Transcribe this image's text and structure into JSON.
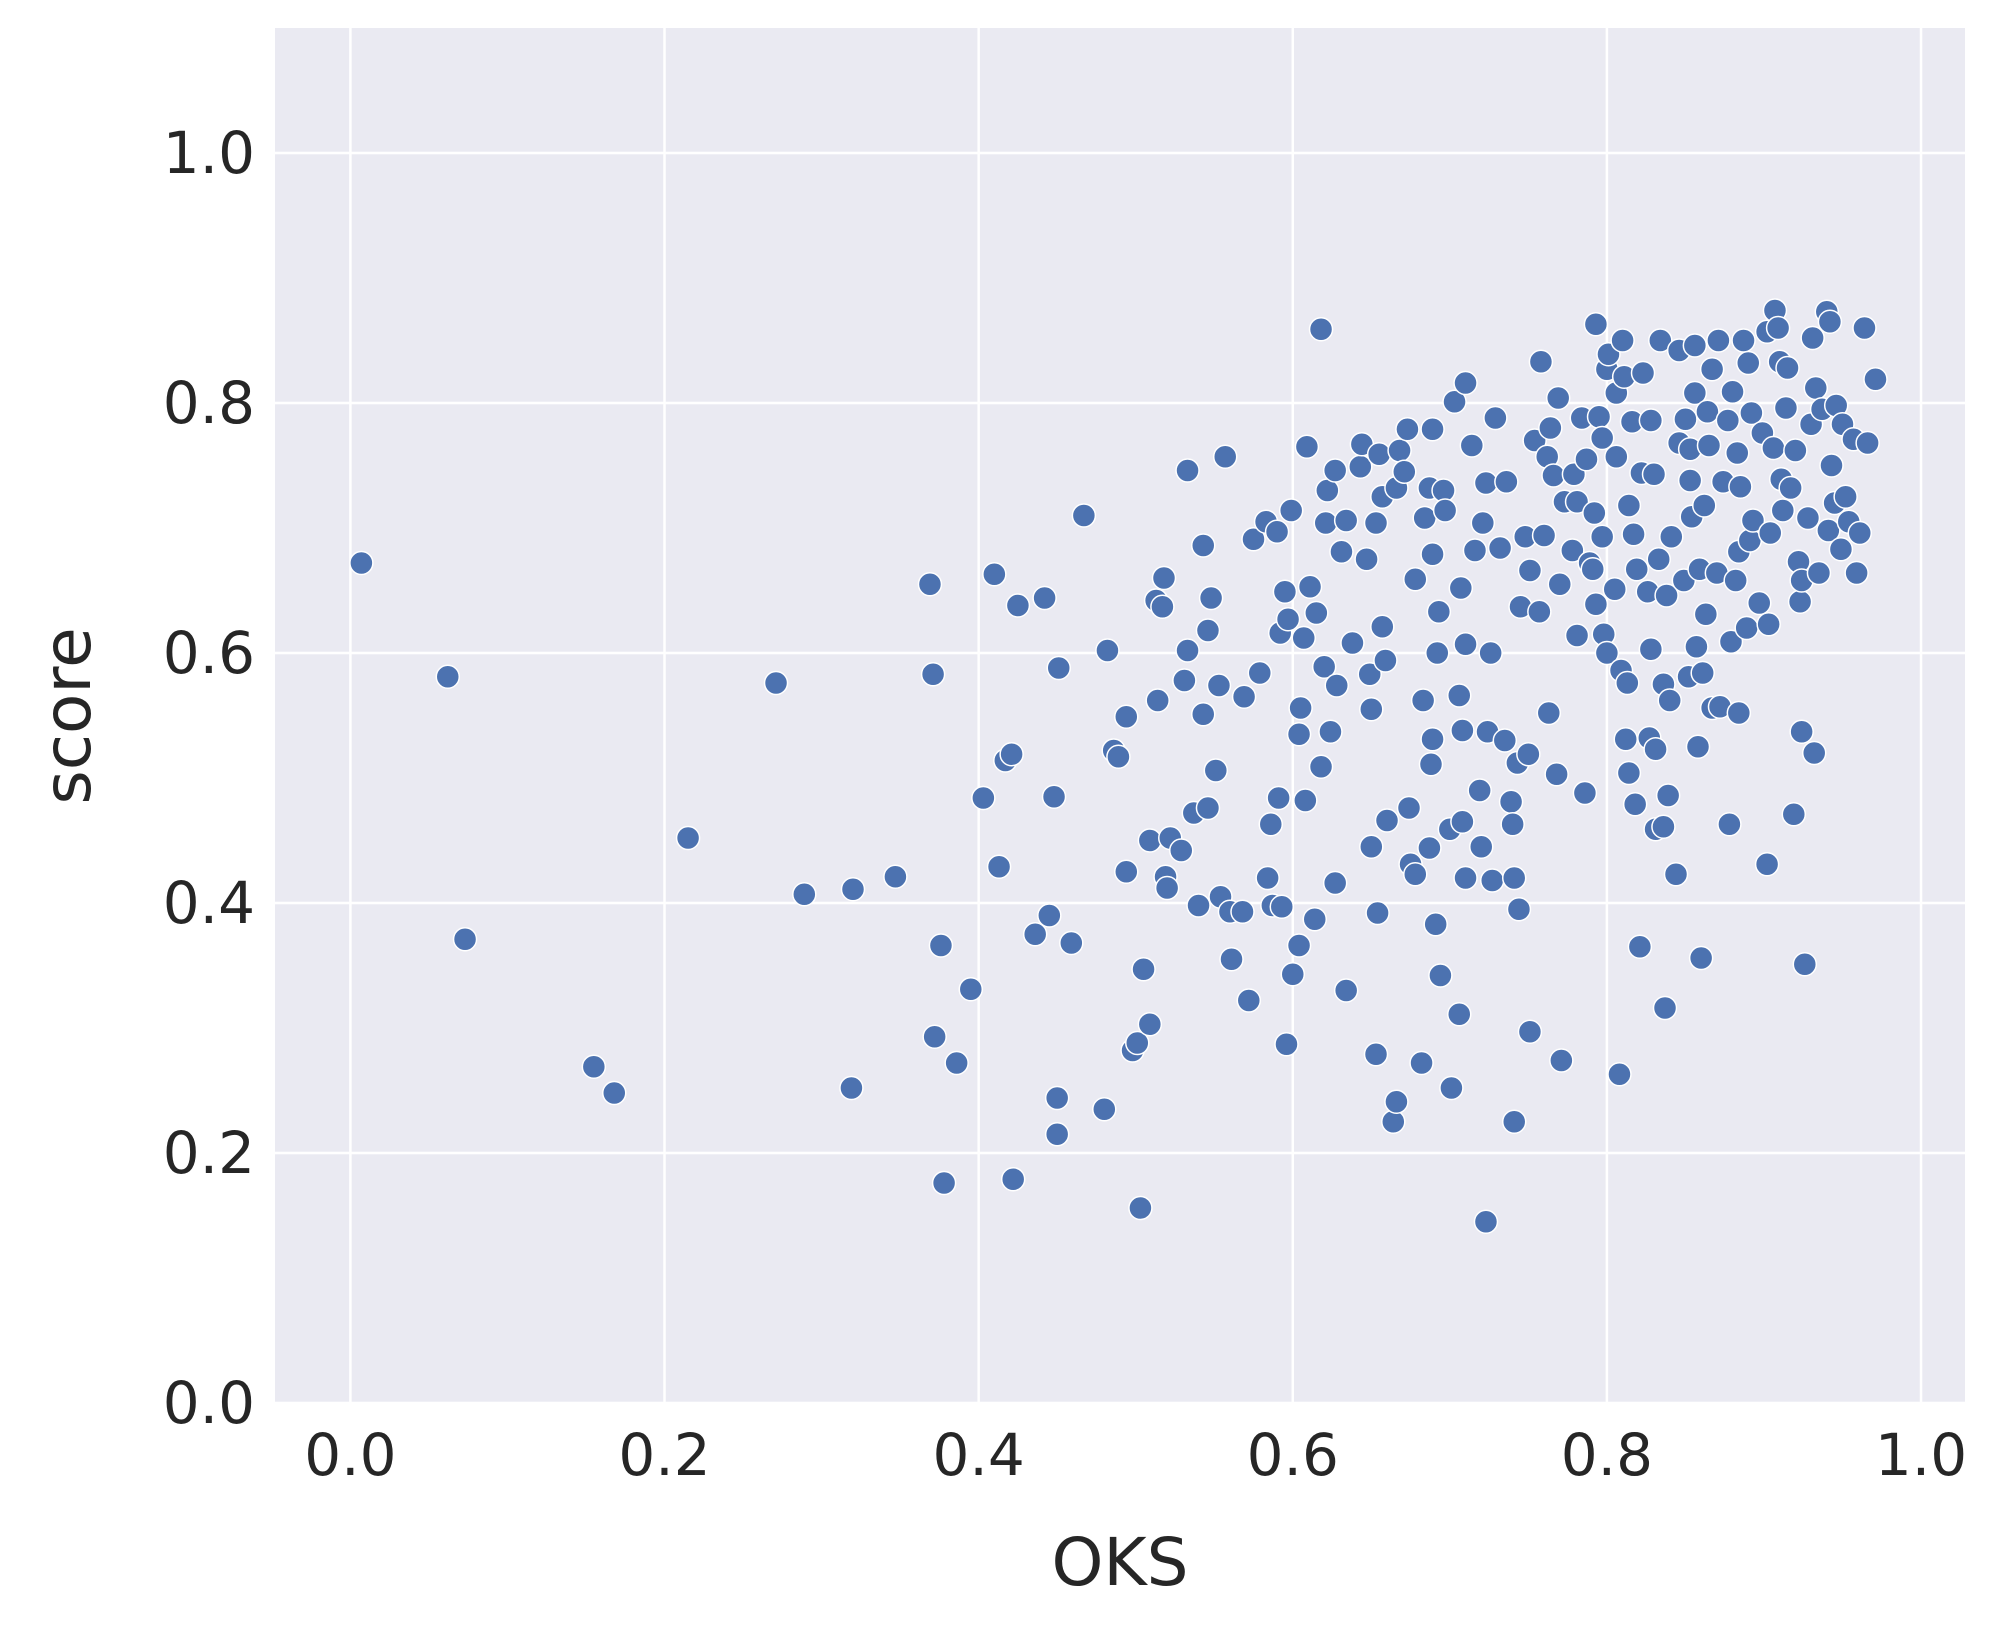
{
  "chart_data": {
    "type": "scatter",
    "xlabel": "OKS",
    "ylabel": "score",
    "color": "#4c72b0",
    "grid": true,
    "xlim": [
      -0.048,
      1.028
    ],
    "ylim": [
      0,
      1.1
    ],
    "xticks": [
      {
        "value": 0,
        "label": "0.0"
      },
      0.2,
      0.4,
      0.6,
      0.8,
      {
        "value": 1,
        "label": "1.0"
      }
    ],
    "yticks": [
      {
        "value": 0,
        "label": "0.0"
      },
      0.2,
      0.4,
      0.6,
      0.8,
      {
        "value": 1,
        "label": "1.0"
      }
    ],
    "x": [
      0.007,
      0.062,
      0.073,
      0.155,
      0.168,
      0.215,
      0.271,
      0.289,
      0.32,
      0.319,
      0.347,
      0.369,
      0.371,
      0.372,
      0.376,
      0.378,
      0.386,
      0.395,
      0.403,
      0.41,
      0.413,
      0.417,
      0.421,
      0.422,
      0.425,
      0.436,
      0.442,
      0.445,
      0.448,
      0.45,
      0.45,
      0.451,
      0.459,
      0.467,
      0.482,
      0.48,
      0.486,
      0.489,
      0.494,
      0.494,
      0.498,
      0.501,
      0.503,
      0.505,
      0.509,
      0.509,
      0.513,
      0.514,
      0.517,
      0.518,
      0.519,
      0.52,
      0.522,
      0.529,
      0.533,
      0.533,
      0.531,
      0.537,
      0.54,
      0.543,
      0.543,
      0.546,
      0.548,
      0.546,
      0.551,
      0.553,
      0.554,
      0.557,
      0.56,
      0.561,
      0.568,
      0.569,
      0.572,
      0.575,
      0.579,
      0.583,
      0.584,
      0.586,
      0.587,
      0.59,
      0.591,
      0.592,
      0.593,
      0.595,
      0.596,
      0.599,
      0.597,
      0.6,
      0.604,
      0.605,
      0.604,
      0.608,
      0.607,
      0.609,
      0.611,
      0.614,
      0.615,
      0.618,
      0.618,
      0.621,
      0.62,
      0.622,
      0.624,
      0.627,
      0.627,
      0.628,
      0.631,
      0.634,
      0.634,
      0.638,
      0.643,
      0.644,
      0.647,
      0.649,
      0.65,
      0.65,
      0.653,
      0.653,
      0.654,
      0.655,
      0.657,
      0.657,
      0.659,
      0.66,
      0.664,
      0.666,
      0.666,
      0.668,
      0.671,
      0.673,
      0.674,
      0.675,
      0.678,
      0.678,
      0.682,
      0.683,
      0.684,
      0.687,
      0.687,
      0.688,
      0.689,
      0.689,
      0.689,
      0.691,
      0.692,
      0.693,
      0.694,
      0.696,
      0.697,
      0.7,
      0.701,
      0.703,
      0.706,
      0.706,
      0.707,
      0.708,
      0.708,
      0.71,
      0.71,
      0.71,
      0.714,
      0.716,
      0.719,
      0.72,
      0.721,
      0.723,
      0.723,
      0.724,
      0.726,
      0.727,
      0.729,
      0.732,
      0.735,
      0.736,
      0.739,
      0.74,
      0.741,
      0.741,
      0.743,
      0.744,
      0.745,
      0.748,
      0.75,
      0.751,
      0.751,
      0.754,
      0.757,
      0.758,
      0.76,
      0.762,
      0.763,
      0.764,
      0.766,
      0.768,
      0.769,
      0.77,
      0.771,
      0.773,
      0.778,
      0.779,
      0.781,
      0.781,
      0.784,
      0.786,
      0.787,
      0.789,
      0.791,
      0.792,
      0.793,
      0.793,
      0.795,
      0.797,
      0.797,
      0.798,
      0.8,
      0.8,
      0.801,
      0.805,
      0.806,
      0.806,
      0.808,
      0.809,
      0.81,
      0.811,
      0.812,
      0.813,
      0.814,
      0.814,
      0.816,
      0.817,
      0.818,
      0.819,
      0.821,
      0.822,
      0.823,
      0.826,
      0.827,
      0.828,
      0.828,
      0.83,
      0.831,
      0.831,
      0.833,
      0.834,
      0.836,
      0.836,
      0.837,
      0.838,
      0.839,
      0.84,
      0.841,
      0.844,
      0.846,
      0.846,
      0.849,
      0.85,
      0.852,
      0.853,
      0.853,
      0.854,
      0.856,
      0.856,
      0.857,
      0.858,
      0.859,
      0.86,
      0.861,
      0.862,
      0.863,
      0.864,
      0.865,
      0.867,
      0.867,
      0.87,
      0.871,
      0.872,
      0.874,
      0.877,
      0.878,
      0.879,
      0.88,
      0.882,
      0.883,
      0.884,
      0.884,
      0.885,
      0.887,
      0.889,
      0.89,
      0.891,
      0.892,
      0.893,
      0.897,
      0.899,
      0.902,
      0.902,
      0.903,
      0.904,
      0.906,
      0.907,
      0.909,
      0.91,
      0.911,
      0.912,
      0.914,
      0.915,
      0.917,
      0.919,
      0.92,
      0.922,
      0.923,
      0.924,
      0.924,
      0.926,
      0.928,
      0.93,
      0.931,
      0.932,
      0.933,
      0.935,
      0.937,
      0.94,
      0.941,
      0.942,
      0.943,
      0.945,
      0.946,
      0.949,
      0.95,
      0.952,
      0.954,
      0.957,
      0.959,
      0.961,
      0.964,
      0.966,
      0.971
    ],
    "values": [
      0.672,
      0.581,
      0.371,
      0.269,
      0.248,
      0.452,
      0.576,
      0.407,
      0.411,
      0.252,
      0.421,
      0.655,
      0.583,
      0.293,
      0.366,
      0.176,
      0.272,
      0.331,
      0.484,
      0.663,
      0.429,
      0.514,
      0.519,
      0.179,
      0.638,
      0.375,
      0.644,
      0.39,
      0.485,
      0.244,
      0.215,
      0.588,
      0.368,
      0.71,
      0.602,
      0.235,
      0.522,
      0.517,
      0.549,
      0.425,
      0.282,
      0.288,
      0.156,
      0.347,
      0.45,
      0.303,
      0.642,
      0.562,
      0.637,
      0.66,
      0.421,
      0.412,
      0.452,
      0.442,
      0.746,
      0.602,
      0.578,
      0.472,
      0.398,
      0.551,
      0.686,
      0.618,
      0.644,
      0.476,
      0.506,
      0.574,
      0.405,
      0.757,
      0.393,
      0.355,
      0.393,
      0.565,
      0.322,
      0.691,
      0.584,
      0.705,
      0.42,
      0.463,
      0.398,
      0.697,
      0.484,
      0.616,
      0.397,
      0.649,
      0.287,
      0.714,
      0.627,
      0.343,
      0.366,
      0.556,
      0.535,
      0.482,
      0.612,
      0.765,
      0.653,
      0.387,
      0.632,
      0.859,
      0.509,
      0.704,
      0.589,
      0.73,
      0.537,
      0.416,
      0.746,
      0.574,
      0.681,
      0.33,
      0.706,
      0.608,
      0.749,
      0.767,
      0.675,
      0.583,
      0.555,
      0.445,
      0.279,
      0.704,
      0.392,
      0.759,
      0.621,
      0.725,
      0.594,
      0.466,
      0.225,
      0.241,
      0.732,
      0.762,
      0.745,
      0.779,
      0.476,
      0.431,
      0.423,
      0.659,
      0.272,
      0.562,
      0.708,
      0.732,
      0.444,
      0.511,
      0.531,
      0.679,
      0.779,
      0.383,
      0.6,
      0.633,
      0.342,
      0.73,
      0.714,
      0.459,
      0.252,
      0.801,
      0.311,
      0.566,
      0.652,
      0.538,
      0.465,
      0.42,
      0.816,
      0.607,
      0.766,
      0.682,
      0.49,
      0.445,
      0.704,
      0.145,
      0.736,
      0.537,
      0.6,
      0.418,
      0.788,
      0.684,
      0.53,
      0.737,
      0.481,
      0.463,
      0.42,
      0.225,
      0.512,
      0.395,
      0.637,
      0.693,
      0.519,
      0.297,
      0.666,
      0.77,
      0.633,
      0.833,
      0.694,
      0.757,
      0.552,
      0.78,
      0.742,
      0.503,
      0.804,
      0.655,
      0.274,
      0.721,
      0.682,
      0.743,
      0.721,
      0.614,
      0.788,
      0.488,
      0.755,
      0.672,
      0.667,
      0.712,
      0.863,
      0.639,
      0.789,
      0.772,
      0.693,
      0.615,
      0.6,
      0.827,
      0.839,
      0.651,
      0.808,
      0.757,
      0.263,
      0.586,
      0.85,
      0.821,
      0.531,
      0.576,
      0.504,
      0.718,
      0.785,
      0.695,
      0.479,
      0.667,
      0.365,
      0.744,
      0.824,
      0.649,
      0.532,
      0.603,
      0.786,
      0.743,
      0.523,
      0.459,
      0.675,
      0.85,
      0.575,
      0.461,
      0.316,
      0.646,
      0.486,
      0.562,
      0.693,
      0.423,
      0.768,
      0.842,
      0.658,
      0.787,
      0.581,
      0.738,
      0.763,
      0.709,
      0.846,
      0.808,
      0.605,
      0.525,
      0.667,
      0.356,
      0.584,
      0.718,
      0.631,
      0.793,
      0.766,
      0.556,
      0.827,
      0.664,
      0.85,
      0.557,
      0.737,
      0.786,
      0.463,
      0.609,
      0.809,
      0.658,
      0.76,
      0.552,
      0.681,
      0.733,
      0.85,
      0.62,
      0.832,
      0.69,
      0.792,
      0.706,
      0.64,
      0.776,
      0.857,
      0.431,
      0.623,
      0.696,
      0.764,
      0.874,
      0.86,
      0.833,
      0.739,
      0.714,
      0.796,
      0.828,
      0.732,
      0.471,
      0.762,
      0.673,
      0.641,
      0.537,
      0.658,
      0.351,
      0.708,
      0.783,
      0.852,
      0.52,
      0.812,
      0.664,
      0.795,
      0.873,
      0.698,
      0.865,
      0.75,
      0.72,
      0.798,
      0.683,
      0.783,
      0.725,
      0.705,
      0.771,
      0.664,
      0.696,
      0.86,
      0.768,
      0.819
    ]
  }
}
